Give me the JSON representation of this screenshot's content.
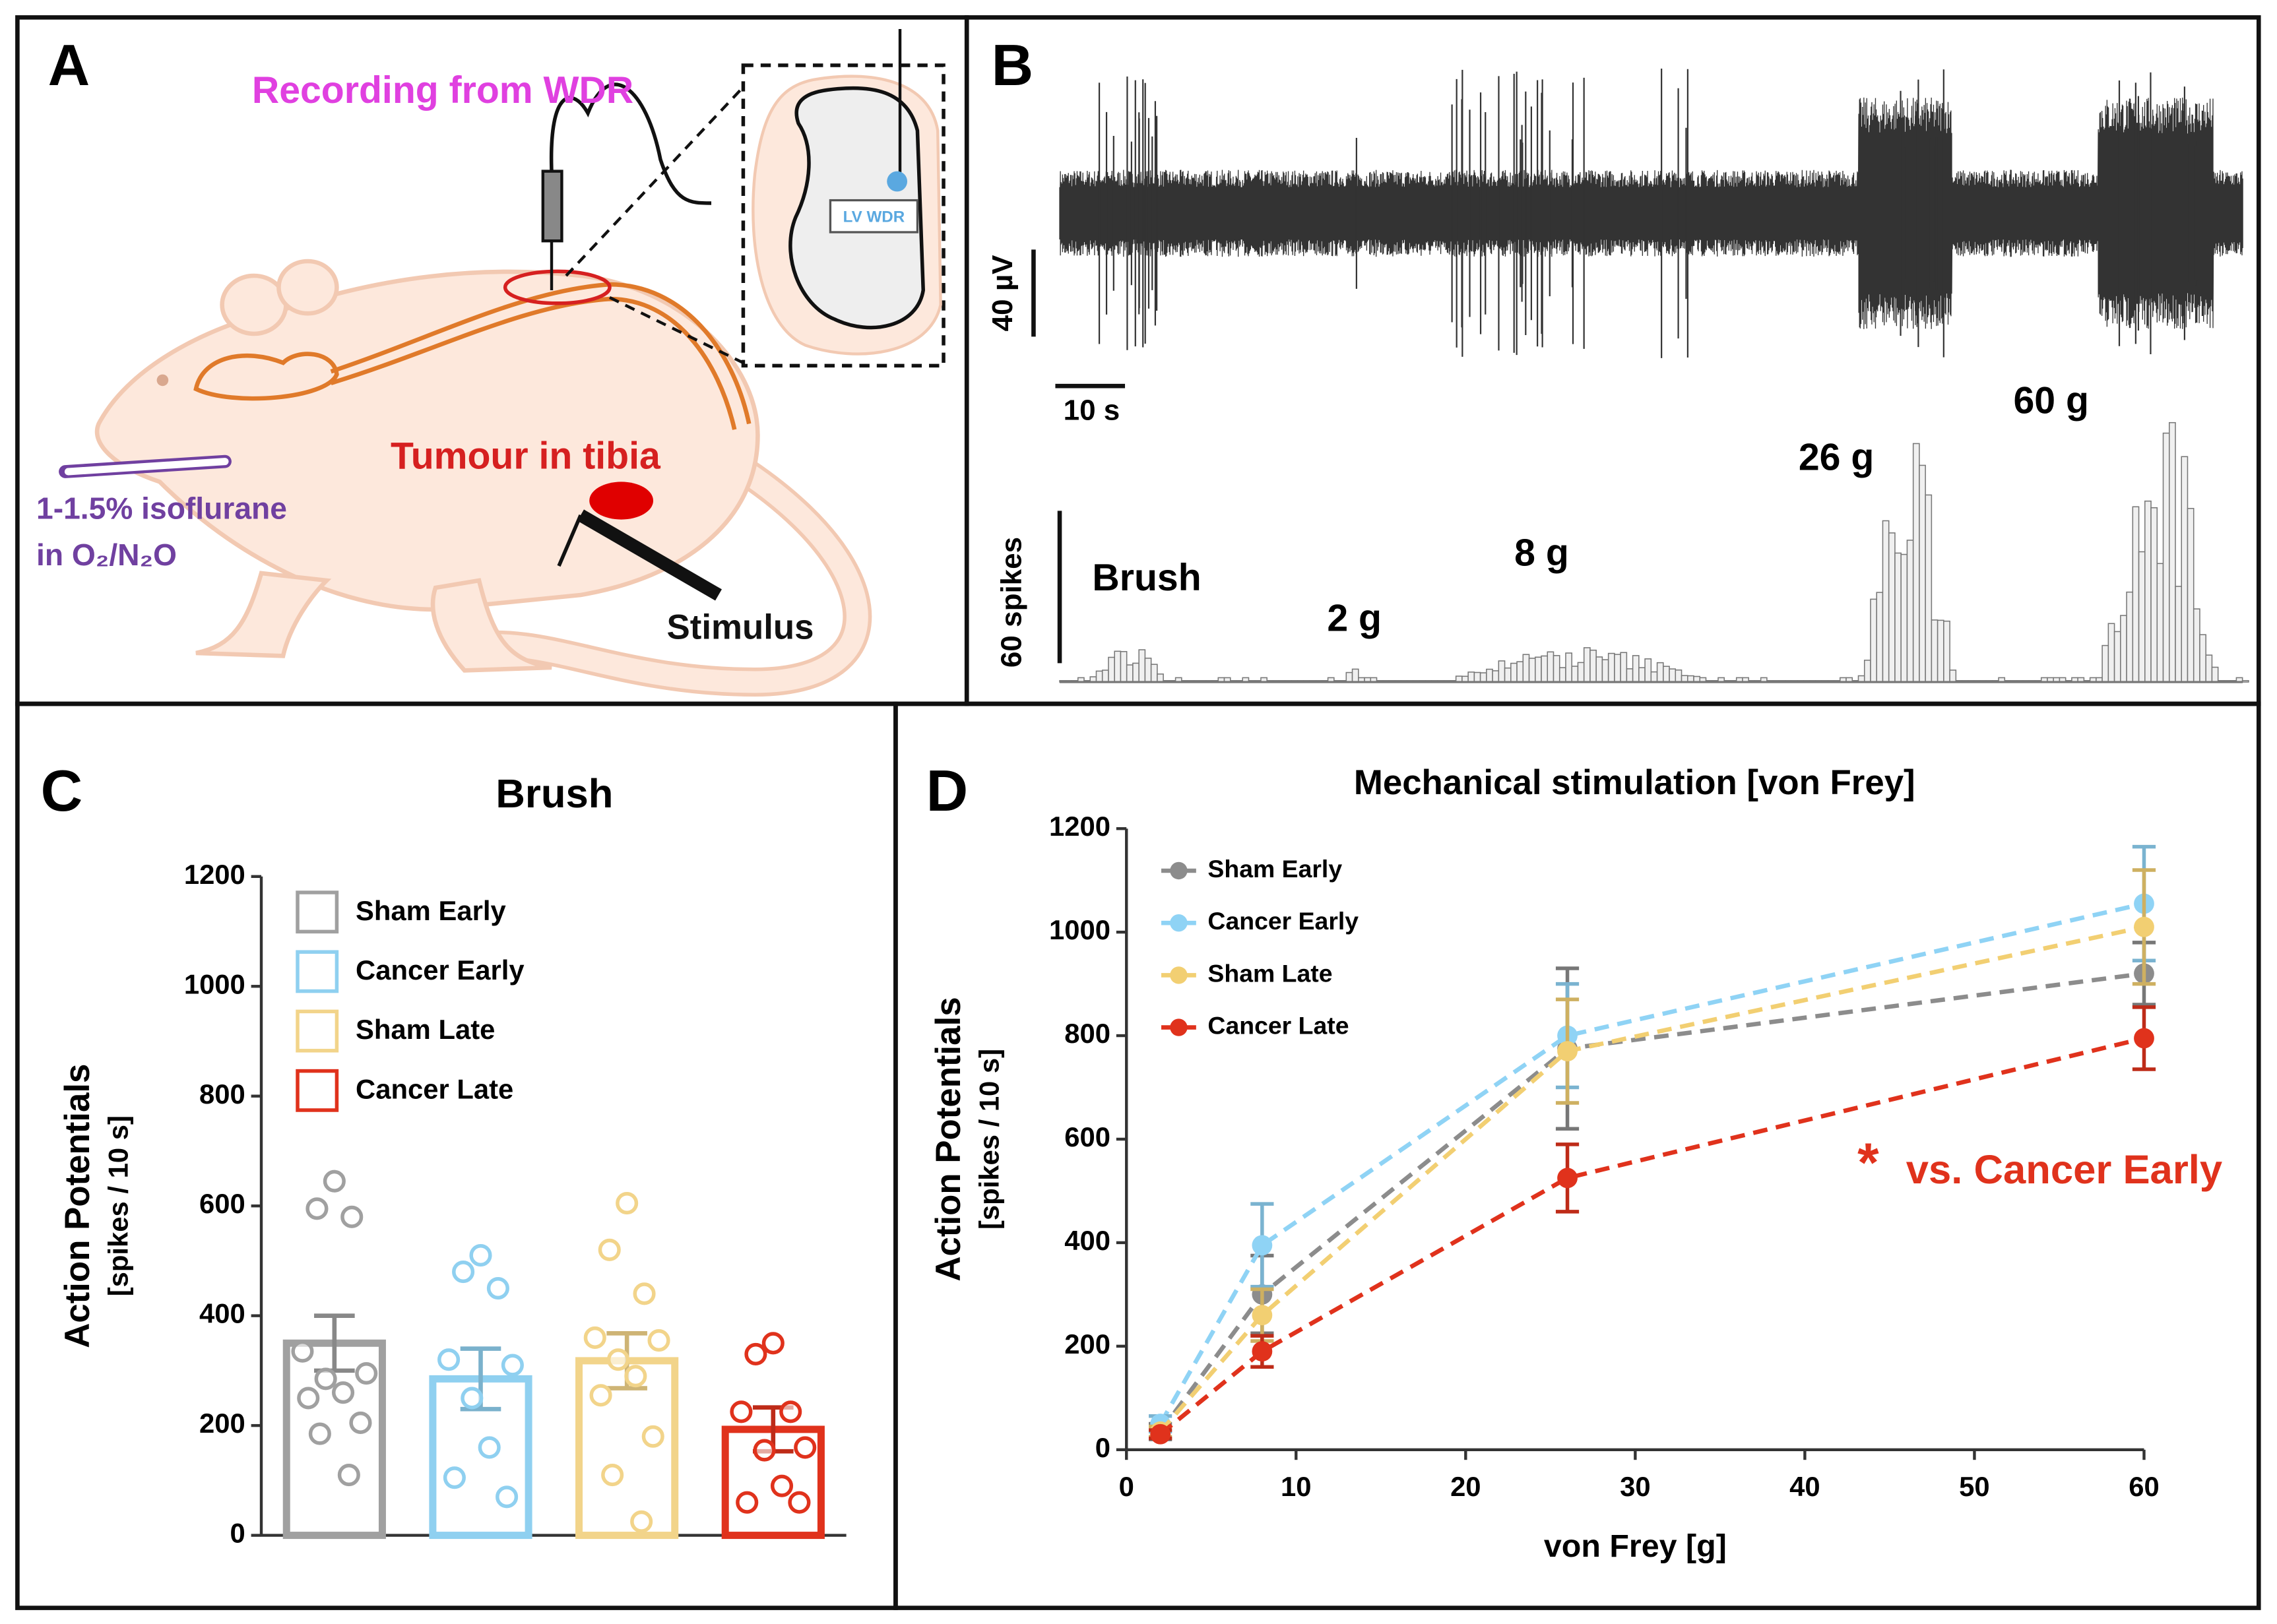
{
  "panel_labels": [
    "A",
    "B",
    "C",
    "D"
  ],
  "panel_a": {
    "recording": "Recording from WDR",
    "tumour": "Tumour in tibia",
    "anaesthesia": [
      "1-1.5% isoflurane",
      "in O₂/N₂O"
    ],
    "stimulus": "Stimulus",
    "inset_label": "LV WDR"
  },
  "panel_b": {
    "voltage_scale": "40 µV",
    "time_scale": "10 s",
    "spike_scale": "60 spikes",
    "stimuli": [
      "Brush",
      "2 g",
      "8 g",
      "26 g",
      "60 g"
    ]
  },
  "chart_data": [
    {
      "type": "bar",
      "title": "Brush",
      "ylabel": [
        "Action Potentials",
        "[spikes / 10 s]"
      ],
      "ylim": [
        0,
        1200
      ],
      "yticks": [
        0,
        200,
        400,
        600,
        800,
        1000,
        1200
      ],
      "legend": "upper left",
      "series": [
        {
          "name": "Sham Early",
          "color": "#a0a0a0",
          "values": [
            350
          ],
          "errors": [
            50
          ],
          "points": [
            645,
            595,
            580,
            335,
            295,
            285,
            260,
            250,
            205,
            185,
            110
          ]
        },
        {
          "name": "Cancer Early",
          "color": "#8fd0f0",
          "values": [
            285
          ],
          "errors": [
            55
          ],
          "points": [
            510,
            480,
            450,
            320,
            310,
            250,
            160,
            105,
            70
          ]
        },
        {
          "name": "Sham Late",
          "color": "#f2d48a",
          "values": [
            318
          ],
          "errors": [
            50
          ],
          "points": [
            605,
            520,
            440,
            360,
            355,
            320,
            290,
            255,
            180,
            110,
            25
          ]
        },
        {
          "name": "Cancer Late",
          "color": "#e0321c",
          "values": [
            193
          ],
          "errors": [
            40
          ],
          "points": [
            350,
            330,
            225,
            225,
            160,
            155,
            90,
            60,
            60
          ]
        }
      ]
    },
    {
      "type": "line",
      "title": "Mechanical stimulation [von Frey]",
      "xlabel": "von Frey [g]",
      "ylabel": [
        "Action Potentials",
        "[spikes / 10 s]"
      ],
      "x": [
        2,
        8,
        26,
        60
      ],
      "xlim": [
        0,
        60
      ],
      "xticks": [
        0,
        10,
        20,
        30,
        40,
        50,
        60
      ],
      "ylim": [
        0,
        1200
      ],
      "yticks": [
        0,
        200,
        400,
        600,
        800,
        1000,
        1200
      ],
      "legend": "upper left",
      "annotations": [
        "*",
        "vs. Cancer Early"
      ],
      "annotation_color": "#e0321c",
      "series": [
        {
          "name": "Sham Early",
          "color": "#8c8c8c",
          "values": [
            35,
            300,
            775,
            920
          ],
          "errors": [
            15,
            75,
            155,
            60
          ]
        },
        {
          "name": "Cancer Early",
          "color": "#8fd3f5",
          "values": [
            50,
            395,
            800,
            1055
          ],
          "errors": [
            15,
            80,
            100,
            110
          ]
        },
        {
          "name": "Sham Late",
          "color": "#f2cf72",
          "values": [
            35,
            260,
            770,
            1010
          ],
          "errors": [
            10,
            50,
            100,
            110
          ]
        },
        {
          "name": "Cancer Late",
          "color": "#e0321c",
          "values": [
            30,
            190,
            525,
            795
          ],
          "errors": [
            8,
            30,
            65,
            60
          ]
        }
      ]
    }
  ]
}
